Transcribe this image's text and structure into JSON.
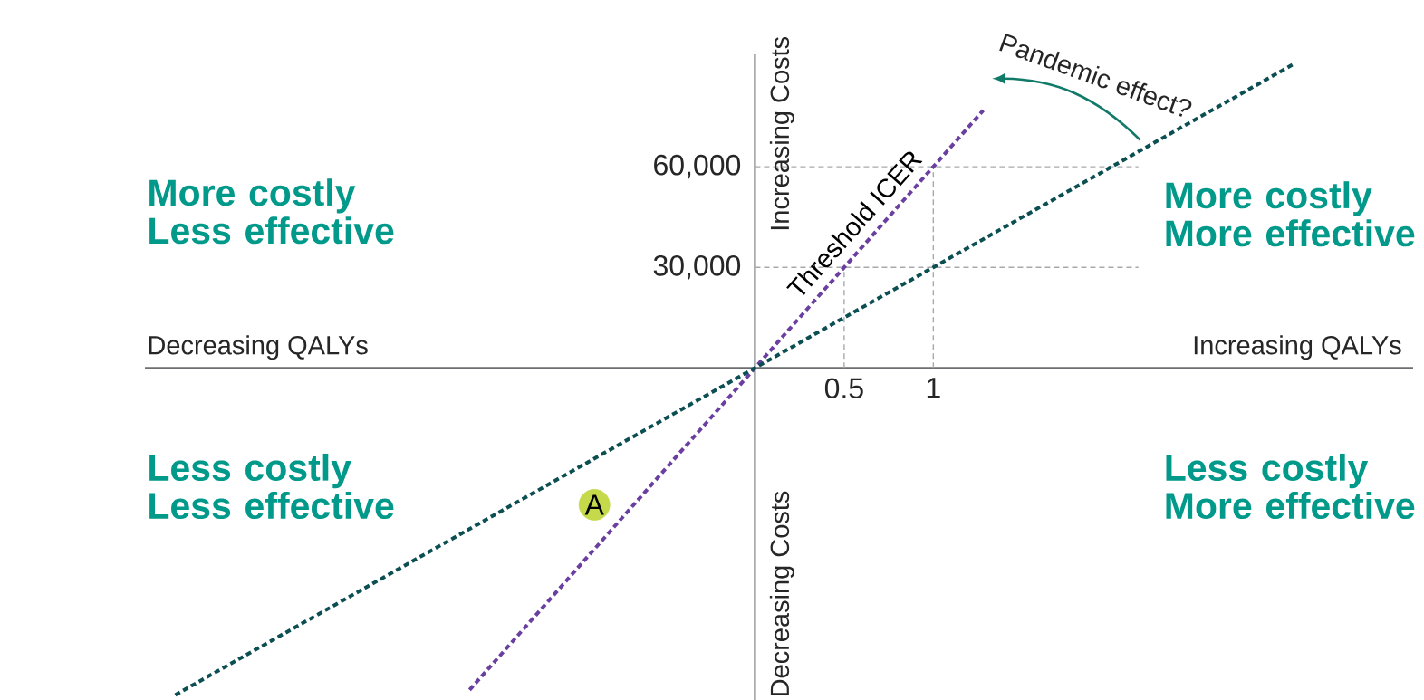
{
  "chart_data": {
    "type": "line",
    "series": [
      {
        "name": "Threshold ICER",
        "color": "#6b3fa0",
        "line_style": "dashed",
        "x": [
          -1.6,
          1.28
        ],
        "values": [
          -96000,
          76800
        ]
      },
      {
        "color": "#0b4f52",
        "line_style": "dashed",
        "x": [
          -3.25,
          3.03
        ],
        "values": [
          -97500,
          90900
        ]
      },
      {
        "name": "A",
        "type": "scatter",
        "color": "#c5d94b",
        "marker": "circle",
        "x": [
          -0.9
        ],
        "values": [
          -40800
        ]
      }
    ],
    "xlim": [
      -3.42,
      3.69
    ],
    "ylim": [
      -99000,
      93500
    ],
    "xticks": [
      0.5,
      1
    ],
    "yticks": [
      {
        "value": 30000,
        "label": "30,000"
      },
      {
        "value": 60000,
        "label": "60,000"
      }
    ],
    "ref_lines": [
      {
        "axis": "y",
        "value": 30000,
        "color": "#a7a9ac",
        "line_style": "dashed"
      },
      {
        "axis": "y",
        "value": 60000,
        "color": "#a7a9ac",
        "line_style": "dashed"
      },
      {
        "axis": "x",
        "value": 0.5,
        "color": "#a7a9ac",
        "line_style": "dashed"
      },
      {
        "axis": "x",
        "value": 1,
        "color": "#a7a9ac",
        "line_style": "dashed"
      }
    ],
    "annotations": [
      "More costly Less effective",
      "More costly More effective",
      "Less costly Less effective",
      "Less costly More effective",
      "Decreasing QALYs",
      "Increasing QALYs",
      "Increasing Costs",
      "Decreasing Costs",
      "Pandemic effect?"
    ]
  }
}
